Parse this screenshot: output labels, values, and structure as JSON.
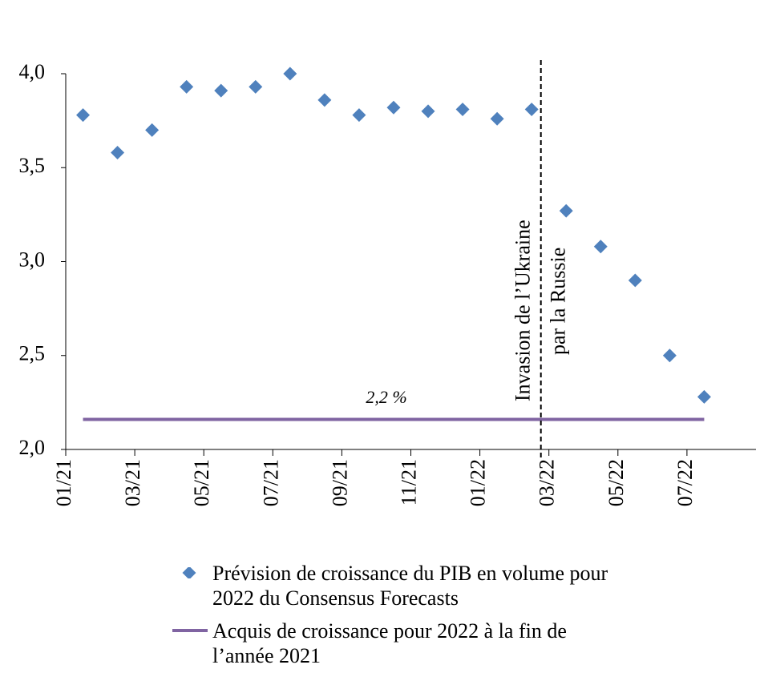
{
  "chart_data": {
    "type": "scatter",
    "categories": [
      "01/21",
      null,
      "03/21",
      null,
      "05/21",
      null,
      "07/21",
      null,
      "09/21",
      null,
      "11/21",
      null,
      "01/22",
      null,
      "03/22",
      null,
      "05/22",
      null,
      "07/22",
      null
    ],
    "series": [
      {
        "name": "Prévision de croissance du PIB en volume pour 2022 du Consensus Forecasts",
        "type": "scatter",
        "color": "#4f81bd",
        "values": [
          3.78,
          3.58,
          3.7,
          3.93,
          3.91,
          3.93,
          4.0,
          3.86,
          3.78,
          3.82,
          3.8,
          3.81,
          3.76,
          3.81,
          3.27,
          3.08,
          2.9,
          2.5,
          2.28,
          null
        ]
      },
      {
        "name": "Acquis de croissance pour 2022 à la fin de l’année 2021",
        "type": "line",
        "color": "#8064a2",
        "values": [
          2.16,
          2.16,
          2.16,
          2.16,
          2.16,
          2.16,
          2.16,
          2.16,
          2.16,
          2.16,
          2.16,
          2.16,
          2.16,
          2.16,
          2.16,
          2.16,
          2.16,
          2.16,
          2.16,
          null
        ]
      }
    ],
    "annotations": [
      "2,2 %",
      "Invasion de l’Ukraine",
      "par la Russie"
    ],
    "ylim": [
      2.0,
      4.0
    ],
    "yticks": [
      {
        "value": 2.0,
        "label": "2,0"
      },
      {
        "value": 2.5,
        "label": "2,5"
      },
      {
        "value": 3.0,
        "label": "3,0"
      },
      {
        "value": 3.5,
        "label": "3,5"
      },
      {
        "value": 4.0,
        "label": "4,0"
      }
    ],
    "grid": false
  }
}
